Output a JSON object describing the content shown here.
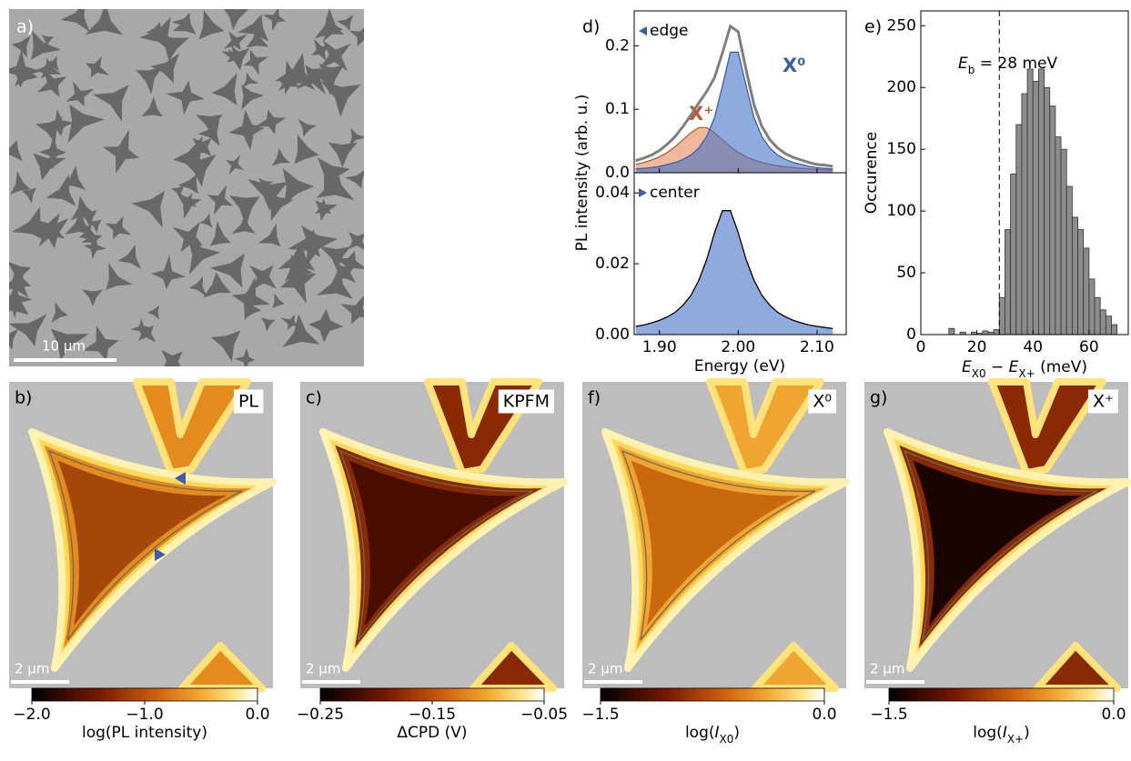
{
  "panel_a": {
    "label": "a)",
    "scale_bar": "10 µm"
  },
  "chart_data": [
    {
      "type": "area",
      "panel_label": "d)",
      "ylabel": "PL intensity (arb. u.)",
      "legend_label": "edge",
      "x": [
        1.87,
        1.88,
        1.89,
        1.9,
        1.91,
        1.92,
        1.93,
        1.94,
        1.95,
        1.96,
        1.97,
        1.98,
        1.99,
        2.0,
        2.01,
        2.02,
        2.03,
        2.04,
        2.05,
        2.06,
        2.07,
        2.08,
        2.09,
        2.1,
        2.11,
        2.12
      ],
      "xlim": [
        1.868,
        2.137
      ],
      "ylim": [
        0,
        0.255
      ],
      "yticks": [
        {
          "value": 0,
          "label": "0.0"
        },
        0.1,
        0.2
      ],
      "series": [
        {
          "name": "X⁺",
          "color": "#e8875a",
          "line": "#b85a35",
          "values": [
            0.013,
            0.016,
            0.02,
            0.025,
            0.032,
            0.041,
            0.052,
            0.063,
            0.071,
            0.071,
            0.063,
            0.052,
            0.041,
            0.032,
            0.025,
            0.02,
            0.016,
            0.013,
            0.011,
            0.009,
            0.008,
            0.007,
            0.006,
            0.005,
            0.005,
            0.004
          ]
        },
        {
          "name": "X⁰",
          "color": "#4472c4",
          "line": "#3a5fa8",
          "values": [
            0.006,
            0.007,
            0.008,
            0.01,
            0.013,
            0.016,
            0.021,
            0.028,
            0.039,
            0.057,
            0.087,
            0.137,
            0.19,
            0.19,
            0.137,
            0.087,
            0.057,
            0.039,
            0.028,
            0.021,
            0.016,
            0.013,
            0.01,
            0.008,
            0.007,
            0.006
          ]
        },
        {
          "color": "#7f7f7f",
          "values": [
            0.019,
            0.023,
            0.028,
            0.035,
            0.045,
            0.057,
            0.073,
            0.091,
            0.11,
            0.128,
            0.15,
            0.189,
            0.231,
            0.222,
            0.162,
            0.107,
            0.073,
            0.052,
            0.039,
            0.03,
            0.024,
            0.02,
            0.016,
            0.013,
            0.012,
            0.01
          ]
        }
      ]
    },
    {
      "type": "area",
      "xlabel": "Energy (eV)",
      "legend_label": "center",
      "x": [
        1.87,
        1.88,
        1.89,
        1.9,
        1.91,
        1.92,
        1.93,
        1.94,
        1.95,
        1.96,
        1.97,
        1.98,
        1.99,
        2.0,
        2.01,
        2.02,
        2.03,
        2.04,
        2.05,
        2.06,
        2.07,
        2.08,
        2.09,
        2.1,
        2.11,
        2.12
      ],
      "xlim": [
        1.868,
        2.137
      ],
      "ylim": [
        0,
        0.0457
      ],
      "xticks": [
        {
          "value": 1.9,
          "label": "1.90"
        },
        {
          "value": 2,
          "label": "2.00"
        },
        {
          "value": 2.1,
          "label": "2.10"
        }
      ],
      "yticks": [
        {
          "value": 0,
          "label": "0.00"
        },
        0.02,
        0.04
      ],
      "series": [
        {
          "color": "#4472c4",
          "line": "#000000",
          "values": [
            0.0023,
            0.0027,
            0.0033,
            0.004,
            0.005,
            0.0063,
            0.0083,
            0.0111,
            0.0153,
            0.0212,
            0.0288,
            0.035,
            0.035,
            0.0288,
            0.0212,
            0.0153,
            0.0111,
            0.0083,
            0.0063,
            0.005,
            0.004,
            0.0033,
            0.0027,
            0.0023,
            0.002,
            0.0017
          ]
        }
      ]
    },
    {
      "type": "histogram",
      "panel_label": "e)",
      "ylabel": "Occurence",
      "xlabel": {
        "symbol1": "E",
        "sub1": "X0",
        "operator": " − ",
        "symbol2": "E",
        "sub2": "X+",
        "unit": " (meV)"
      },
      "bins": [
        10,
        12,
        14,
        16,
        18,
        20,
        22,
        24,
        26,
        28,
        30,
        32,
        34,
        36,
        38,
        40,
        42,
        44,
        46,
        48,
        50,
        52,
        54,
        56,
        58,
        60,
        62,
        64,
        66,
        68,
        70
      ],
      "counts": [
        5,
        0,
        2,
        0,
        2,
        1,
        3,
        2,
        4,
        30,
        85,
        130,
        170,
        195,
        215,
        205,
        215,
        200,
        185,
        160,
        150,
        120,
        95,
        85,
        70,
        45,
        30,
        20,
        15,
        8
      ],
      "color": "#8c8c8c",
      "xlim": [
        0,
        74
      ],
      "ylim": [
        0,
        262
      ],
      "xticks": [
        0,
        20,
        40,
        60
      ],
      "yticks": [
        0,
        50,
        100,
        150,
        200,
        250
      ],
      "annotation": {
        "symbol": "E",
        "subscript": "b",
        "text": " = 28 meV",
        "value": 28
      }
    }
  ],
  "maps": [
    {
      "label": "b)",
      "tag": "PL",
      "scale_bar": "2 µm",
      "colorbar_lim": [
        -2,
        0
      ],
      "colorbar_ticks": [
        {
          "value": -2,
          "label": "−2.0"
        },
        {
          "value": -1,
          "label": "−1.0"
        },
        {
          "value": 0,
          "label": "0.0"
        }
      ],
      "colorbar_label": "log(PL intensity)"
    },
    {
      "label": "c)",
      "tag": "KPFM",
      "scale_bar": "2 µm",
      "colorbar_lim": [
        -0.25,
        -0.05
      ],
      "colorbar_ticks": [
        {
          "value": -0.25,
          "label": "−0.25"
        },
        {
          "value": -0.15,
          "label": "−0.15"
        },
        {
          "value": -0.05,
          "label": "−0.05"
        }
      ],
      "colorbar_label": "ΔCPD (V)"
    },
    {
      "label": "f)",
      "tag": "X⁰",
      "scale_bar": "2 µm",
      "colorbar_lim": [
        -1.5,
        0
      ],
      "colorbar_ticks": [
        {
          "value": -1.5,
          "label": "−1.5"
        },
        {
          "value": 0,
          "label": "0.0"
        }
      ],
      "colorbar_label": {
        "prefix": "log(",
        "symbol": "I",
        "subscript": "X0",
        "suffix": ")"
      }
    },
    {
      "label": "g)",
      "tag": "X⁺",
      "scale_bar": "2 µm",
      "colorbar_lim": [
        -1.5,
        0
      ],
      "colorbar_ticks": [
        {
          "value": -1.5,
          "label": "−1.5"
        },
        {
          "value": 0,
          "label": "0.0"
        }
      ],
      "colorbar_label": {
        "prefix": "log(",
        "symbol": "I",
        "subscript": "X+",
        "suffix": ")"
      }
    }
  ]
}
